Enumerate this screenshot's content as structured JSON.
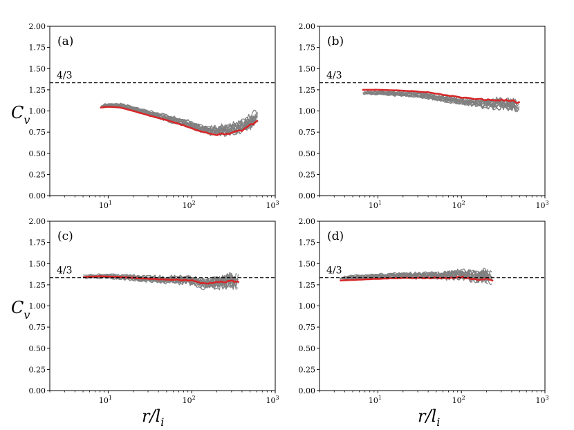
{
  "chart_data": [
    {
      "type": "line",
      "panel_label": "(a)",
      "xscale": "log",
      "xlim": [
        2,
        1000
      ],
      "ylim": [
        0.0,
        2.0
      ],
      "yticks": [
        "0.00",
        "0.25",
        "0.50",
        "0.75",
        "1.00",
        "1.25",
        "1.50",
        "1.75",
        "2.00"
      ],
      "xticks": [
        {
          "base": "10",
          "exp": "1",
          "value": 10
        },
        {
          "base": "10",
          "exp": "2",
          "value": 100
        },
        {
          "base": "10",
          "exp": "3",
          "value": 1000
        }
      ],
      "reference_line": {
        "y": 1.3333,
        "label": "4/3",
        "style": "dashed"
      },
      "mean_series": {
        "name": "mean",
        "color": "#d62728",
        "x": [
          8,
          10,
          14,
          20,
          30,
          50,
          80,
          120,
          160,
          200,
          300,
          400,
          550,
          620
        ],
        "y": [
          1.04,
          1.05,
          1.04,
          1.0,
          0.95,
          0.89,
          0.83,
          0.77,
          0.73,
          0.72,
          0.74,
          0.77,
          0.85,
          0.9
        ]
      },
      "sample_series": {
        "name": "samples",
        "color": "#808080",
        "count": 14,
        "spread_start": 0.04,
        "spread_end": 0.11,
        "noise_start": 0.01,
        "noise_end": 0.07
      }
    },
    {
      "type": "line",
      "panel_label": "(b)",
      "xscale": "log",
      "xlim": [
        2,
        1000
      ],
      "ylim": [
        0.0,
        2.0
      ],
      "yticks": [
        "0.00",
        "0.25",
        "0.50",
        "0.75",
        "1.00",
        "1.25",
        "1.50",
        "1.75",
        "2.00"
      ],
      "xticks": [
        {
          "base": "10",
          "exp": "1",
          "value": 10
        },
        {
          "base": "10",
          "exp": "2",
          "value": 100
        },
        {
          "base": "10",
          "exp": "3",
          "value": 1000
        }
      ],
      "reference_line": {
        "y": 1.3333,
        "label": "4/3",
        "style": "dashed"
      },
      "mean_series": {
        "name": "mean",
        "color": "#d62728",
        "x": [
          6.5,
          10,
          20,
          40,
          70,
          100,
          200,
          300,
          400,
          500
        ],
        "y": [
          1.25,
          1.25,
          1.24,
          1.22,
          1.18,
          1.16,
          1.13,
          1.13,
          1.12,
          1.1
        ]
      },
      "sample_series": {
        "name": "samples",
        "color": "#808080",
        "count": 14,
        "spread_start": 0.05,
        "spread_end": 0.06,
        "noise_start": 0.01,
        "noise_end": 0.06
      }
    },
    {
      "type": "line",
      "panel_label": "(c)",
      "xscale": "log",
      "xlim": [
        2,
        1000
      ],
      "ylim": [
        0.0,
        2.0
      ],
      "yticks": [
        "0.00",
        "0.25",
        "0.50",
        "0.75",
        "1.00",
        "1.25",
        "1.50",
        "1.75",
        "2.00"
      ],
      "xticks": [
        {
          "base": "10",
          "exp": "1",
          "value": 10
        },
        {
          "base": "10",
          "exp": "2",
          "value": 100
        },
        {
          "base": "10",
          "exp": "3",
          "value": 1000
        }
      ],
      "reference_line": {
        "y": 1.3333,
        "label": "4/3",
        "style": "dashed"
      },
      "mean_series": {
        "name": "mean",
        "color": "#d62728",
        "x": [
          5,
          8,
          15,
          30,
          60,
          100,
          150,
          200,
          300,
          370
        ],
        "y": [
          1.34,
          1.35,
          1.34,
          1.32,
          1.31,
          1.3,
          1.26,
          1.28,
          1.29,
          1.28
        ]
      },
      "sample_series": {
        "name": "samples",
        "color": "#808080",
        "count": 14,
        "spread_start": 0.07,
        "spread_end": 0.05,
        "noise_start": 0.01,
        "noise_end": 0.08
      }
    },
    {
      "type": "line",
      "panel_label": "(d)",
      "xscale": "log",
      "xlim": [
        2,
        1000
      ],
      "ylim": [
        0.0,
        2.0
      ],
      "yticks": [
        "0.00",
        "0.25",
        "0.50",
        "0.75",
        "1.00",
        "1.25",
        "1.50",
        "1.75",
        "2.00"
      ],
      "xticks": [
        {
          "base": "10",
          "exp": "1",
          "value": 10
        },
        {
          "base": "10",
          "exp": "2",
          "value": 100
        },
        {
          "base": "10",
          "exp": "3",
          "value": 1000
        }
      ],
      "reference_line": {
        "y": 1.3333,
        "label": "4/3",
        "style": "dashed"
      },
      "mean_series": {
        "name": "mean",
        "color": "#d62728",
        "x": [
          3.5,
          6,
          10,
          20,
          40,
          70,
          100,
          150,
          200,
          240
        ],
        "y": [
          1.3,
          1.31,
          1.32,
          1.33,
          1.33,
          1.33,
          1.34,
          1.31,
          1.32,
          1.3
        ]
      },
      "sample_series": {
        "name": "samples",
        "color": "#808080",
        "count": 14,
        "spread_start": 0.04,
        "spread_end": 0.04,
        "noise_start": 0.01,
        "noise_end": 0.07
      }
    }
  ],
  "axis_labels": {
    "ylabel_main": "C",
    "ylabel_sub": "v",
    "xlabel_main": "r/l",
    "xlabel_sub": "i"
  },
  "colors": {
    "axes": "#000000",
    "samples": "#808080",
    "mean": "#d62728",
    "reference": "#000000"
  }
}
